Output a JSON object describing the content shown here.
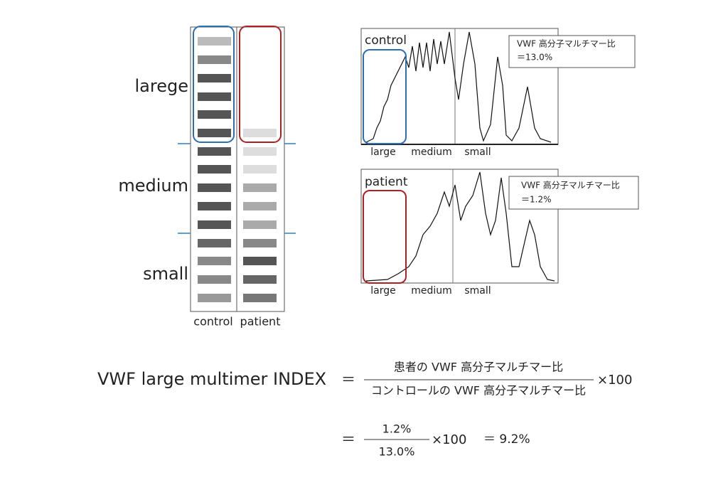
{
  "gel": {
    "size_labels": [
      "larege",
      "medium",
      "small"
    ],
    "lane_labels": [
      "control",
      "patient"
    ]
  },
  "profiles": [
    {
      "label": "control",
      "note_title": "VWF 高分子マルチマー比",
      "note_value": "＝13.0%",
      "x_labels": [
        "large",
        "medium",
        "small"
      ]
    },
    {
      "label": "patient",
      "note_title": "VWF 高分子マルチマー比",
      "note_value": "＝1.2%",
      "x_labels": [
        "large",
        "medium",
        "small"
      ]
    }
  ],
  "formula": {
    "name": "VWF large multimer INDEX",
    "equals": "＝",
    "numerator": "患者の VWF 高分子マルチマー比",
    "denominator": "コントロールの VWF 高分子マルチマー比",
    "factor": "×100",
    "equals2": "＝",
    "numerator2": "1.2%",
    "denominator2": "13.0%",
    "factor2": "×100",
    "result": "＝ 9.2%"
  }
}
